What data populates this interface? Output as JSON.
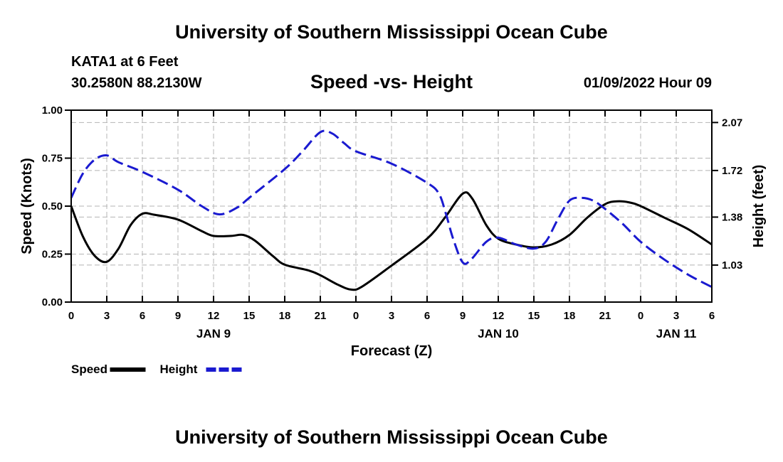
{
  "header": {
    "title": "University of Southern Mississippi Ocean Cube",
    "station": "KATA1 at 6 Feet",
    "coords": "30.2580N  88.2130W",
    "chart_title": "Speed -vs- Height",
    "date": "01/09/2022 Hour 09"
  },
  "footer": {
    "title": "University of Southern Mississippi Ocean Cube"
  },
  "chart_data": {
    "type": "line",
    "title": "Speed -vs- Height",
    "xlabel": "Forecast (Z)",
    "ylabel": "Speed (Knots)",
    "y2label": "Height (feet)",
    "x_unit": "forecast hour",
    "xlim": [
      0,
      54
    ],
    "ylim": [
      0,
      1
    ],
    "y2lim": [
      0.76,
      2.16
    ],
    "grid": true,
    "x_ticks": [
      {
        "x": 0,
        "label": "0"
      },
      {
        "x": 3,
        "label": "3"
      },
      {
        "x": 6,
        "label": "6"
      },
      {
        "x": 9,
        "label": "9"
      },
      {
        "x": 12,
        "label": "12"
      },
      {
        "x": 15,
        "label": "15"
      },
      {
        "x": 18,
        "label": "18"
      },
      {
        "x": 21,
        "label": "21"
      },
      {
        "x": 24,
        "label": "0"
      },
      {
        "x": 27,
        "label": "3"
      },
      {
        "x": 30,
        "label": "6"
      },
      {
        "x": 33,
        "label": "9"
      },
      {
        "x": 36,
        "label": "12"
      },
      {
        "x": 39,
        "label": "15"
      },
      {
        "x": 42,
        "label": "18"
      },
      {
        "x": 45,
        "label": "21"
      },
      {
        "x": 48,
        "label": "0"
      },
      {
        "x": 51,
        "label": "3"
      },
      {
        "x": 54,
        "label": "6"
      }
    ],
    "date_labels": [
      {
        "x": 12,
        "label": "JAN 9"
      },
      {
        "x": 36,
        "label": "JAN 10"
      },
      {
        "x": 51,
        "label": "JAN 11"
      }
    ],
    "y_ticks": [
      {
        "v": 0.0,
        "label": "0.00"
      },
      {
        "v": 0.25,
        "label": "0.25"
      },
      {
        "v": 0.5,
        "label": "0.50"
      },
      {
        "v": 0.75,
        "label": "0.75"
      },
      {
        "v": 1.0,
        "label": "1.00"
      }
    ],
    "y2_ticks": [
      {
        "v": 1.03,
        "label": "1.03"
      },
      {
        "v": 1.38,
        "label": "1.38"
      },
      {
        "v": 1.72,
        "label": "1.72"
      },
      {
        "v": 2.07,
        "label": "2.07"
      }
    ],
    "legend": [
      {
        "name": "Speed",
        "color": "#000000",
        "dash": "solid"
      },
      {
        "name": "Height",
        "color": "#1a1ad0",
        "dash": "dashed"
      }
    ],
    "series": [
      {
        "name": "Speed",
        "axis": "left",
        "color": "#000000",
        "points": [
          [
            0,
            0.5
          ],
          [
            1,
            0.34
          ],
          [
            2,
            0.24
          ],
          [
            3,
            0.21
          ],
          [
            4,
            0.28
          ],
          [
            5,
            0.4
          ],
          [
            6,
            0.46
          ],
          [
            7,
            0.455
          ],
          [
            9,
            0.43
          ],
          [
            11,
            0.37
          ],
          [
            12,
            0.345
          ],
          [
            13.5,
            0.345
          ],
          [
            14.5,
            0.35
          ],
          [
            15.5,
            0.32
          ],
          [
            17,
            0.24
          ],
          [
            18,
            0.195
          ],
          [
            20,
            0.165
          ],
          [
            21,
            0.14
          ],
          [
            22.5,
            0.09
          ],
          [
            23.6,
            0.065
          ],
          [
            24.5,
            0.08
          ],
          [
            27,
            0.19
          ],
          [
            30,
            0.33
          ],
          [
            31.5,
            0.44
          ],
          [
            33,
            0.565
          ],
          [
            33.8,
            0.54
          ],
          [
            35,
            0.4
          ],
          [
            36,
            0.33
          ],
          [
            37.5,
            0.3
          ],
          [
            39,
            0.285
          ],
          [
            40.5,
            0.3
          ],
          [
            42,
            0.35
          ],
          [
            43.5,
            0.44
          ],
          [
            45,
            0.51
          ],
          [
            46,
            0.525
          ],
          [
            47,
            0.52
          ],
          [
            48,
            0.5
          ],
          [
            50,
            0.44
          ],
          [
            52,
            0.38
          ],
          [
            54,
            0.3
          ]
        ]
      },
      {
        "name": "Height",
        "axis": "right",
        "color": "#1a1ad0",
        "points": [
          [
            0,
            1.52
          ],
          [
            1,
            1.7
          ],
          [
            2,
            1.8
          ],
          [
            3,
            1.83
          ],
          [
            4,
            1.78
          ],
          [
            6,
            1.71
          ],
          [
            9,
            1.58
          ],
          [
            11,
            1.46
          ],
          [
            12.5,
            1.4
          ],
          [
            14,
            1.45
          ],
          [
            15,
            1.52
          ],
          [
            18,
            1.73
          ],
          [
            19.5,
            1.86
          ],
          [
            21,
            2.0
          ],
          [
            22,
            1.99
          ],
          [
            23,
            1.92
          ],
          [
            24,
            1.86
          ],
          [
            27,
            1.77
          ],
          [
            30,
            1.63
          ],
          [
            31,
            1.55
          ],
          [
            31.6,
            1.4
          ],
          [
            32.2,
            1.22
          ],
          [
            33,
            1.05
          ],
          [
            33.7,
            1.07
          ],
          [
            35,
            1.2
          ],
          [
            36,
            1.23
          ],
          [
            37.5,
            1.18
          ],
          [
            39,
            1.15
          ],
          [
            40,
            1.2
          ],
          [
            41,
            1.36
          ],
          [
            42,
            1.5
          ],
          [
            43,
            1.52
          ],
          [
            44,
            1.5
          ],
          [
            45,
            1.44
          ],
          [
            46.5,
            1.33
          ],
          [
            48,
            1.2
          ],
          [
            50,
            1.07
          ],
          [
            52,
            0.96
          ],
          [
            54,
            0.87
          ]
        ]
      }
    ]
  }
}
